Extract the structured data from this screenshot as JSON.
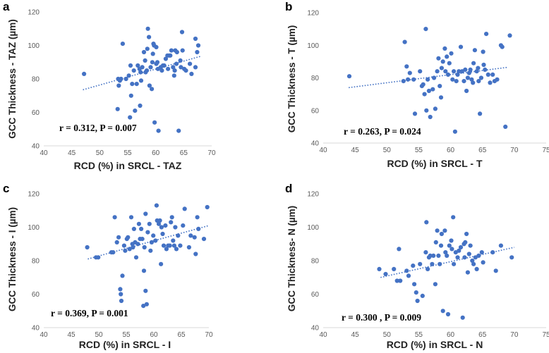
{
  "figure": {
    "point_color": "#4472C4",
    "trend_color": "#4472C4"
  },
  "chart_data": [
    {
      "type": "scatter",
      "panel_label": "a",
      "xlabel": "RCD (%) in SRCL - TAZ",
      "ylabel": "GCC Thickness - TAZ (µm)",
      "stat_text": "r = 0.312,  P = 0.007",
      "xlim": [
        40,
        70
      ],
      "ylim": [
        40,
        120
      ],
      "xticks": [
        40,
        45,
        50,
        55,
        60,
        65,
        70
      ],
      "yticks": [
        40,
        60,
        80,
        100,
        120
      ],
      "trendline": {
        "x": [
          47,
          68
        ],
        "y": [
          73.5,
          93.5
        ]
      },
      "points": [
        [
          47.2,
          83
        ],
        [
          53.2,
          62
        ],
        [
          53.3,
          80
        ],
        [
          53.4,
          76
        ],
        [
          53.6,
          79
        ],
        [
          53.8,
          80
        ],
        [
          54.1,
          101
        ],
        [
          54.7,
          80
        ],
        [
          55.2,
          82
        ],
        [
          55.5,
          88
        ],
        [
          55.4,
          57
        ],
        [
          55.6,
          70
        ],
        [
          55.8,
          77
        ],
        [
          56.1,
          85
        ],
        [
          56.3,
          61
        ],
        [
          56.6,
          77
        ],
        [
          56.8,
          88
        ],
        [
          57.1,
          86
        ],
        [
          57.3,
          84
        ],
        [
          57.2,
          64
        ],
        [
          57.4,
          79
        ],
        [
          57.6,
          87
        ],
        [
          57.9,
          96
        ],
        [
          58.1,
          91
        ],
        [
          58.2,
          84
        ],
        [
          58.4,
          85
        ],
        [
          58.5,
          98
        ],
        [
          58.6,
          110
        ],
        [
          58.8,
          105
        ],
        [
          58.9,
          76
        ],
        [
          59.1,
          87
        ],
        [
          59.3,
          74
        ],
        [
          59.4,
          90
        ],
        [
          59.5,
          95
        ],
        [
          59.6,
          101
        ],
        [
          59.7,
          100
        ],
        [
          59.8,
          54
        ],
        [
          60.1,
          99
        ],
        [
          60.1,
          89
        ],
        [
          60.3,
          90
        ],
        [
          60.4,
          86
        ],
        [
          60.5,
          49
        ],
        [
          60.9,
          87
        ],
        [
          61.1,
          85
        ],
        [
          61.3,
          88
        ],
        [
          61.5,
          88
        ],
        [
          61.8,
          92
        ],
        [
          62.1,
          94
        ],
        [
          62.2,
          86
        ],
        [
          62.4,
          94
        ],
        [
          62.6,
          94
        ],
        [
          62.8,
          97
        ],
        [
          63.1,
          87
        ],
        [
          63.3,
          82
        ],
        [
          63.4,
          85
        ],
        [
          63.5,
          97
        ],
        [
          63.7,
          89
        ],
        [
          63.8,
          96
        ],
        [
          64.1,
          49
        ],
        [
          64.4,
          91
        ],
        [
          64.5,
          87
        ],
        [
          64.7,
          108
        ],
        [
          64.8,
          97
        ],
        [
          65.1,
          86
        ],
        [
          65.4,
          85
        ],
        [
          66.1,
          89
        ],
        [
          66.4,
          83
        ],
        [
          67.1,
          104
        ],
        [
          67.4,
          96
        ],
        [
          67.1,
          87
        ],
        [
          67.6,
          100
        ]
      ]
    },
    {
      "type": "scatter",
      "panel_label": "b",
      "xlabel": "RCD (%) in SRCL - T",
      "ylabel": "GCC Thickness - T (µm)",
      "stat_text": "r = 0.263, P = 0.024",
      "xlim": [
        40,
        75
      ],
      "ylim": [
        40,
        120
      ],
      "xticks": [
        40,
        45,
        50,
        55,
        60,
        65,
        70,
        75
      ],
      "yticks": [
        40,
        60,
        80,
        100,
        120
      ],
      "trendline": {
        "x": [
          44,
          69
        ],
        "y": [
          74,
          86.5
        ]
      },
      "points": [
        [
          44.1,
          81
        ],
        [
          52.6,
          78
        ],
        [
          52.8,
          102
        ],
        [
          53.1,
          87
        ],
        [
          53.3,
          79
        ],
        [
          53.6,
          83
        ],
        [
          54.2,
          79
        ],
        [
          54.4,
          58
        ],
        [
          55.2,
          84
        ],
        [
          55.5,
          75
        ],
        [
          55.7,
          76
        ],
        [
          55.9,
          70
        ],
        [
          56.1,
          110
        ],
        [
          56.2,
          60
        ],
        [
          56.4,
          79
        ],
        [
          56.6,
          72
        ],
        [
          56.8,
          56
        ],
        [
          57.2,
          73
        ],
        [
          57.4,
          80
        ],
        [
          57.6,
          61
        ],
        [
          57.9,
          84
        ],
        [
          58.1,
          92
        ],
        [
          58.3,
          75
        ],
        [
          58.5,
          68
        ],
        [
          58.6,
          86
        ],
        [
          58.8,
          90
        ],
        [
          59.1,
          98
        ],
        [
          59.2,
          84
        ],
        [
          59.4,
          93
        ],
        [
          59.6,
          82
        ],
        [
          59.8,
          89
        ],
        [
          60.1,
          95
        ],
        [
          60.3,
          79
        ],
        [
          60.5,
          84
        ],
        [
          60.7,
          47
        ],
        [
          60.9,
          78
        ],
        [
          61.1,
          82
        ],
        [
          61.3,
          84
        ],
        [
          61.6,
          99
        ],
        [
          61.8,
          84
        ],
        [
          62.1,
          78
        ],
        [
          62.3,
          85
        ],
        [
          62.5,
          72
        ],
        [
          62.7,
          80
        ],
        [
          62.9,
          83
        ],
        [
          63.1,
          85
        ],
        [
          63.3,
          79
        ],
        [
          63.5,
          77
        ],
        [
          63.6,
          89
        ],
        [
          63.8,
          97
        ],
        [
          64.1,
          84
        ],
        [
          64.3,
          86
        ],
        [
          64.4,
          78
        ],
        [
          64.6,
          58
        ],
        [
          64.8,
          80
        ],
        [
          65.1,
          96
        ],
        [
          65.2,
          88
        ],
        [
          65.4,
          85
        ],
        [
          65.6,
          107
        ],
        [
          65.9,
          82
        ],
        [
          66.2,
          77
        ],
        [
          66.6,
          82
        ],
        [
          66.9,
          78
        ],
        [
          67.3,
          79
        ],
        [
          67.9,
          100
        ],
        [
          68.1,
          99
        ],
        [
          68.6,
          50
        ],
        [
          69.3,
          106
        ]
      ]
    },
    {
      "type": "scatter",
      "panel_label": "c",
      "xlabel": "RCD (%) in SRCL - I",
      "ylabel": "GCC Thickness - I (µm)",
      "stat_text": "r = 0.369, P = 0.001",
      "xlim": [
        40,
        70
      ],
      "ylim": [
        40,
        120
      ],
      "xticks": [
        40,
        45,
        50,
        55,
        60,
        65,
        70
      ],
      "yticks": [
        40,
        60,
        80,
        100,
        120
      ],
      "trendline": {
        "x": [
          48,
          70
        ],
        "y": [
          81,
          101
        ]
      },
      "points": [
        [
          47.9,
          88
        ],
        [
          49.5,
          82
        ],
        [
          49.9,
          82
        ],
        [
          52.3,
          85
        ],
        [
          52.6,
          85
        ],
        [
          52.9,
          106
        ],
        [
          53.3,
          91
        ],
        [
          53.6,
          94
        ],
        [
          53.9,
          63
        ],
        [
          54.0,
          60
        ],
        [
          54.1,
          56
        ],
        [
          54.3,
          71
        ],
        [
          54.6,
          89
        ],
        [
          54.8,
          86
        ],
        [
          55.1,
          93
        ],
        [
          55.3,
          94
        ],
        [
          55.6,
          87
        ],
        [
          55.9,
          106
        ],
        [
          56.1,
          90
        ],
        [
          56.2,
          88
        ],
        [
          56.4,
          99
        ],
        [
          56.6,
          91
        ],
        [
          56.8,
          82
        ],
        [
          57.1,
          90
        ],
        [
          57.3,
          102
        ],
        [
          57.5,
          93
        ],
        [
          57.7,
          99
        ],
        [
          57.9,
          93
        ],
        [
          58.1,
          53
        ],
        [
          58.2,
          74
        ],
        [
          58.3,
          88
        ],
        [
          58.5,
          108
        ],
        [
          58.5,
          62
        ],
        [
          58.7,
          54
        ],
        [
          58.9,
          97
        ],
        [
          59.2,
          102
        ],
        [
          59.4,
          86
        ],
        [
          59.6,
          91
        ],
        [
          59.9,
          95
        ],
        [
          60.3,
          92
        ],
        [
          60.5,
          113
        ],
        [
          60.6,
          104
        ],
        [
          60.9,
          102
        ],
        [
          61.1,
          104
        ],
        [
          61.3,
          78
        ],
        [
          61.4,
          100
        ],
        [
          61.6,
          96
        ],
        [
          61.8,
          89
        ],
        [
          62.1,
          101
        ],
        [
          62.3,
          87
        ],
        [
          62.6,
          89
        ],
        [
          62.9,
          89
        ],
        [
          63.1,
          103
        ],
        [
          63.3,
          106
        ],
        [
          63.5,
          92
        ],
        [
          63.7,
          89
        ],
        [
          63.9,
          100
        ],
        [
          64.1,
          87
        ],
        [
          64.4,
          95
        ],
        [
          64.8,
          89
        ],
        [
          65.3,
          101
        ],
        [
          65.6,
          111
        ],
        [
          66.4,
          88
        ],
        [
          66.7,
          95
        ],
        [
          67.4,
          94
        ],
        [
          67.6,
          84
        ],
        [
          67.9,
          106
        ],
        [
          68.1,
          99
        ],
        [
          69.1,
          93
        ],
        [
          69.7,
          112
        ]
      ]
    },
    {
      "type": "scatter",
      "panel_label": "d",
      "xlabel": "RCD (%) in SRCL - N",
      "ylabel": "GCC Thickness- N (µm)",
      "stat_text": "r = 0.300 , P = 0.009",
      "xlim": [
        40,
        75
      ],
      "ylim": [
        40,
        120
      ],
      "xticks": [
        40,
        45,
        50,
        55,
        60,
        65,
        70,
        75
      ],
      "yticks": [
        40,
        60,
        80,
        100,
        120
      ],
      "trendline": {
        "x": [
          49,
          70
        ],
        "y": [
          70,
          88
        ]
      },
      "points": [
        [
          48.8,
          75
        ],
        [
          49.8,
          72
        ],
        [
          51.1,
          75
        ],
        [
          51.6,
          68
        ],
        [
          51.9,
          87
        ],
        [
          52.1,
          68
        ],
        [
          53.1,
          74
        ],
        [
          53.4,
          71
        ],
        [
          54.1,
          77
        ],
        [
          54.3,
          66
        ],
        [
          54.6,
          61
        ],
        [
          54.8,
          56
        ],
        [
          55.2,
          78
        ],
        [
          55.6,
          59
        ],
        [
          56.1,
          85
        ],
        [
          56.2,
          103
        ],
        [
          56.4,
          75
        ],
        [
          56.6,
          82
        ],
        [
          56.8,
          83
        ],
        [
          57.1,
          78
        ],
        [
          57.3,
          83
        ],
        [
          57.6,
          66
        ],
        [
          57.7,
          91
        ],
        [
          57.9,
          98
        ],
        [
          58.1,
          83
        ],
        [
          58.3,
          78
        ],
        [
          58.5,
          89
        ],
        [
          58.6,
          96
        ],
        [
          58.8,
          50
        ],
        [
          59.1,
          98
        ],
        [
          59.2,
          85
        ],
        [
          59.4,
          83
        ],
        [
          59.6,
          48
        ],
        [
          59.8,
          89
        ],
        [
          60.1,
          92
        ],
        [
          60.2,
          87
        ],
        [
          60.4,
          106
        ],
        [
          60.5,
          78
        ],
        [
          60.8,
          85
        ],
        [
          61.1,
          82
        ],
        [
          61.3,
          86
        ],
        [
          61.6,
          88
        ],
        [
          61.9,
          46
        ],
        [
          62.1,
          90
        ],
        [
          62.2,
          82
        ],
        [
          62.3,
          91
        ],
        [
          62.5,
          96
        ],
        [
          62.7,
          73
        ],
        [
          62.9,
          84
        ],
        [
          63.1,
          89
        ],
        [
          63.4,
          80
        ],
        [
          63.6,
          78
        ],
        [
          63.9,
          82
        ],
        [
          64.1,
          75
        ],
        [
          64.4,
          83
        ],
        [
          64.9,
          85
        ],
        [
          65.1,
          79
        ],
        [
          66.6,
          85
        ],
        [
          67.1,
          74
        ],
        [
          67.9,
          89
        ],
        [
          69.6,
          82
        ]
      ]
    }
  ]
}
